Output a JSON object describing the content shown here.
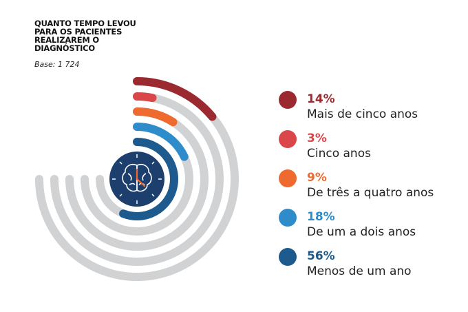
{
  "chart_data": {
    "type": "radial_bar",
    "title": "QUANTO TEMPO LEVOU PARA OS PACIENTES REALIZAREM O DIAGNÓSTICO",
    "subtitle": "Base: 1 724",
    "categories": [
      "Mais de cinco anos",
      "Cinco anos",
      "De três a quatro anos",
      "De um a dois anos",
      "Menos de um ano"
    ],
    "values": [
      14,
      3,
      9,
      18,
      56
    ],
    "value_labels": [
      "14%",
      "3%",
      "9%",
      "18%",
      "56%"
    ],
    "colors": [
      "#9a2a30",
      "#d9474a",
      "#ee6a2f",
      "#2e8ccb",
      "#1d5a8d"
    ],
    "track_color": "#d1d2d4",
    "full_circle": 100
  }
}
